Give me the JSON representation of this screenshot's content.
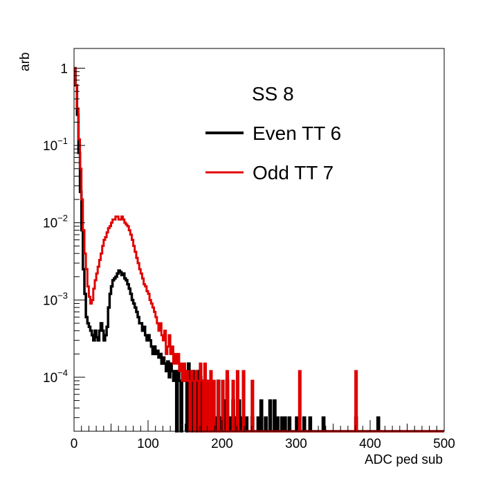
{
  "chart_data": {
    "type": "line",
    "title": "",
    "xlabel": "ADC ped sub",
    "ylabel": "arb",
    "xlim": [
      0,
      500
    ],
    "ylim": [
      2e-05,
      1.8
    ],
    "yscale": "log",
    "grid": false,
    "legend_placement": "top-right",
    "legend": {
      "header": "SS 8",
      "entries": [
        {
          "label": "Even TT 6",
          "color": "#000000"
        },
        {
          "label": "Odd TT 7",
          "color": "#e00000"
        }
      ]
    },
    "x_ticks": [
      {
        "value": 0,
        "label": "0"
      },
      {
        "value": 100,
        "label": "100"
      },
      {
        "value": 200,
        "label": "200"
      },
      {
        "value": 300,
        "label": "300"
      },
      {
        "value": 400,
        "label": "400"
      },
      {
        "value": 500,
        "label": "500"
      }
    ],
    "y_ticks": [
      {
        "value": 1,
        "base": "1",
        "exp": ""
      },
      {
        "value": 0.1,
        "base": "10",
        "exp": "−1"
      },
      {
        "value": 0.01,
        "base": "10",
        "exp": "−2"
      },
      {
        "value": 0.001,
        "base": "10",
        "exp": "−3"
      },
      {
        "value": 0.0001,
        "base": "10",
        "exp": "−4"
      }
    ],
    "series": [
      {
        "name": "Even TT 6",
        "color": "#000000",
        "points": [
          [
            0,
            1.0
          ],
          [
            2,
            0.6
          ],
          [
            4,
            0.25
          ],
          [
            6,
            0.08
          ],
          [
            8,
            0.025
          ],
          [
            10,
            0.008
          ],
          [
            12,
            0.0025
          ],
          [
            14,
            0.0012
          ],
          [
            16,
            0.0006
          ],
          [
            18,
            0.0005
          ],
          [
            20,
            0.00045
          ],
          [
            22,
            0.0004
          ],
          [
            24,
            0.00035
          ],
          [
            26,
            0.0003
          ],
          [
            28,
            0.0004
          ],
          [
            30,
            0.00033
          ],
          [
            32,
            0.0003
          ],
          [
            34,
            0.0004
          ],
          [
            36,
            0.0005
          ],
          [
            38,
            0.0004
          ],
          [
            40,
            0.0003
          ],
          [
            42,
            0.00035
          ],
          [
            44,
            0.00045
          ],
          [
            46,
            0.0008
          ],
          [
            48,
            0.0012
          ],
          [
            50,
            0.0015
          ],
          [
            52,
            0.0018
          ],
          [
            54,
            0.0019
          ],
          [
            56,
            0.002
          ],
          [
            58,
            0.0022
          ],
          [
            60,
            0.0024
          ],
          [
            62,
            0.0023
          ],
          [
            64,
            0.0021
          ],
          [
            66,
            0.0022
          ],
          [
            68,
            0.0019
          ],
          [
            70,
            0.0018
          ],
          [
            72,
            0.0016
          ],
          [
            74,
            0.0014
          ],
          [
            76,
            0.0012
          ],
          [
            78,
            0.001
          ],
          [
            80,
            0.0009
          ],
          [
            82,
            0.0008
          ],
          [
            84,
            0.0007
          ],
          [
            86,
            0.0006
          ],
          [
            88,
            0.0005
          ],
          [
            90,
            0.0005
          ],
          [
            92,
            0.0004
          ],
          [
            94,
            0.00045
          ],
          [
            96,
            0.00035
          ],
          [
            98,
            0.0003
          ],
          [
            100,
            0.00035
          ],
          [
            102,
            0.0003
          ],
          [
            104,
            0.00025
          ],
          [
            106,
            0.0002
          ],
          [
            108,
            0.00025
          ],
          [
            110,
            0.0002
          ],
          [
            112,
            0.00022
          ],
          [
            114,
            0.00018
          ],
          [
            116,
            0.0002
          ],
          [
            118,
            0.00015
          ],
          [
            120,
            0.00018
          ],
          [
            122,
            0.00015
          ],
          [
            124,
            0.00012
          ],
          [
            126,
            0.00016
          ],
          [
            128,
            0.0001
          ],
          [
            130,
            0.00015
          ],
          [
            132,
            0.00012
          ],
          [
            134,
            9e-05
          ],
          [
            136,
            0.00012
          ],
          [
            138,
            2e-05
          ],
          [
            140,
            0.00012
          ],
          [
            142,
            9e-05
          ],
          [
            144,
            2e-05
          ],
          [
            146,
            0.00012
          ],
          [
            148,
            9e-05
          ],
          [
            150,
            0.00012
          ],
          [
            152,
            2e-05
          ],
          [
            154,
            0.00015
          ],
          [
            156,
            9e-05
          ],
          [
            158,
            2e-05
          ],
          [
            160,
            0.00012
          ],
          [
            162,
            9e-05
          ],
          [
            164,
            2e-05
          ],
          [
            166,
            0.00012
          ],
          [
            168,
            2e-05
          ],
          [
            170,
            0.0001
          ],
          [
            172,
            2e-05
          ],
          [
            174,
            9e-05
          ],
          [
            176,
            2e-05
          ],
          [
            178,
            9e-05
          ],
          [
            180,
            2e-05
          ],
          [
            182,
            7e-05
          ],
          [
            184,
            2e-05
          ],
          [
            186,
            5e-05
          ],
          [
            188,
            2e-05
          ],
          [
            190,
            3e-05
          ],
          [
            192,
            2e-05
          ],
          [
            194,
            9e-05
          ],
          [
            196,
            2e-05
          ],
          [
            198,
            3e-05
          ],
          [
            200,
            2e-05
          ],
          [
            202,
            5e-05
          ],
          [
            204,
            2e-05
          ],
          [
            206,
            9e-05
          ],
          [
            208,
            2e-05
          ],
          [
            210,
            3e-05
          ],
          [
            212,
            2e-05
          ],
          [
            214,
            5e-05
          ],
          [
            216,
            2e-05
          ],
          [
            218,
            3e-05
          ],
          [
            220,
            2e-05
          ],
          [
            222,
            5e-05
          ],
          [
            224,
            2e-05
          ],
          [
            226,
            3e-05
          ],
          [
            228,
            2e-05
          ],
          [
            232,
            3e-05
          ],
          [
            234,
            2e-05
          ],
          [
            240,
            3e-05
          ],
          [
            242,
            2e-05
          ],
          [
            248,
            3e-05
          ],
          [
            250,
            2e-05
          ],
          [
            252,
            5e-05
          ],
          [
            254,
            2e-05
          ],
          [
            258,
            3e-05
          ],
          [
            260,
            2e-05
          ],
          [
            264,
            5e-05
          ],
          [
            266,
            2e-05
          ],
          [
            270,
            5e-05
          ],
          [
            272,
            2e-05
          ],
          [
            274,
            3e-05
          ],
          [
            276,
            2e-05
          ],
          [
            280,
            3e-05
          ],
          [
            282,
            2e-05
          ],
          [
            284,
            3e-05
          ],
          [
            286,
            2e-05
          ],
          [
            290,
            3e-05
          ],
          [
            292,
            2e-05
          ],
          [
            300,
            3e-05
          ],
          [
            302,
            2e-05
          ],
          [
            310,
            3e-05
          ],
          [
            312,
            2e-05
          ],
          [
            318,
            3e-05
          ],
          [
            320,
            2e-05
          ],
          [
            336,
            3e-05
          ],
          [
            338,
            2e-05
          ],
          [
            380,
            3e-05
          ],
          [
            382,
            2e-05
          ],
          [
            410,
            3e-05
          ],
          [
            412,
            2e-05
          ],
          [
            500,
            2e-05
          ]
        ]
      },
      {
        "name": "Odd TT 7",
        "color": "#e00000",
        "points": [
          [
            0,
            1.0
          ],
          [
            2,
            0.6
          ],
          [
            4,
            0.3
          ],
          [
            6,
            0.12
          ],
          [
            8,
            0.05
          ],
          [
            10,
            0.02
          ],
          [
            12,
            0.008
          ],
          [
            14,
            0.004
          ],
          [
            16,
            0.0025
          ],
          [
            18,
            0.0015
          ],
          [
            20,
            0.0011
          ],
          [
            22,
            0.0009
          ],
          [
            24,
            0.001
          ],
          [
            26,
            0.0014
          ],
          [
            28,
            0.0018
          ],
          [
            30,
            0.0022
          ],
          [
            32,
            0.0027
          ],
          [
            34,
            0.0033
          ],
          [
            36,
            0.004
          ],
          [
            38,
            0.005
          ],
          [
            40,
            0.006
          ],
          [
            42,
            0.0065
          ],
          [
            44,
            0.0075
          ],
          [
            46,
            0.0085
          ],
          [
            48,
            0.009
          ],
          [
            50,
            0.01
          ],
          [
            52,
            0.011
          ],
          [
            54,
            0.011
          ],
          [
            56,
            0.012
          ],
          [
            58,
            0.012
          ],
          [
            60,
            0.011
          ],
          [
            62,
            0.011
          ],
          [
            64,
            0.012
          ],
          [
            66,
            0.011
          ],
          [
            68,
            0.01
          ],
          [
            70,
            0.0095
          ],
          [
            72,
            0.009
          ],
          [
            74,
            0.008
          ],
          [
            76,
            0.007
          ],
          [
            78,
            0.006
          ],
          [
            80,
            0.005
          ],
          [
            82,
            0.0042
          ],
          [
            84,
            0.0035
          ],
          [
            86,
            0.003
          ],
          [
            88,
            0.0025
          ],
          [
            90,
            0.0022
          ],
          [
            92,
            0.0019
          ],
          [
            94,
            0.0016
          ],
          [
            96,
            0.0015
          ],
          [
            98,
            0.0013
          ],
          [
            100,
            0.0012
          ],
          [
            102,
            0.001
          ],
          [
            104,
            0.0009
          ],
          [
            106,
            0.0008
          ],
          [
            108,
            0.0007
          ],
          [
            110,
            0.0006
          ],
          [
            112,
            0.0005
          ],
          [
            114,
            0.0004
          ],
          [
            116,
            0.0005
          ],
          [
            118,
            0.00035
          ],
          [
            120,
            0.0003
          ],
          [
            122,
            0.0004
          ],
          [
            124,
            0.0002
          ],
          [
            126,
            0.00025
          ],
          [
            128,
            0.00035
          ],
          [
            130,
            0.0002
          ],
          [
            132,
            0.00025
          ],
          [
            134,
            0.00015
          ],
          [
            136,
            0.0002
          ],
          [
            138,
            0.00015
          ],
          [
            140,
            0.0002
          ],
          [
            142,
            0.00012
          ],
          [
            144,
            0.00015
          ],
          [
            146,
            9e-05
          ],
          [
            148,
            0.00015
          ],
          [
            150,
            9e-05
          ],
          [
            152,
            0.00012
          ],
          [
            154,
            9e-05
          ],
          [
            156,
            2e-05
          ],
          [
            158,
            0.00012
          ],
          [
            160,
            9e-05
          ],
          [
            162,
            2e-05
          ],
          [
            164,
            0.00012
          ],
          [
            166,
            9e-05
          ],
          [
            168,
            2e-05
          ],
          [
            170,
            0.00015
          ],
          [
            172,
            9e-05
          ],
          [
            174,
            2e-05
          ],
          [
            176,
            0.00015
          ],
          [
            178,
            2e-05
          ],
          [
            180,
            9e-05
          ],
          [
            182,
            2e-05
          ],
          [
            184,
            0.00012
          ],
          [
            186,
            2e-05
          ],
          [
            188,
            9e-05
          ],
          [
            190,
            2e-05
          ],
          [
            194,
            9e-05
          ],
          [
            196,
            2e-05
          ],
          [
            200,
            9e-05
          ],
          [
            202,
            2e-05
          ],
          [
            206,
            0.00012
          ],
          [
            208,
            2e-05
          ],
          [
            214,
            9e-05
          ],
          [
            216,
            2e-05
          ],
          [
            220,
            0.00012
          ],
          [
            222,
            2e-05
          ],
          [
            228,
            0.00012
          ],
          [
            230,
            2e-05
          ],
          [
            240,
            9e-05
          ],
          [
            242,
            2e-05
          ],
          [
            304,
            0.00012
          ],
          [
            306,
            2e-05
          ],
          [
            380,
            0.00012
          ],
          [
            382,
            2e-05
          ],
          [
            500,
            2e-05
          ]
        ]
      }
    ]
  }
}
